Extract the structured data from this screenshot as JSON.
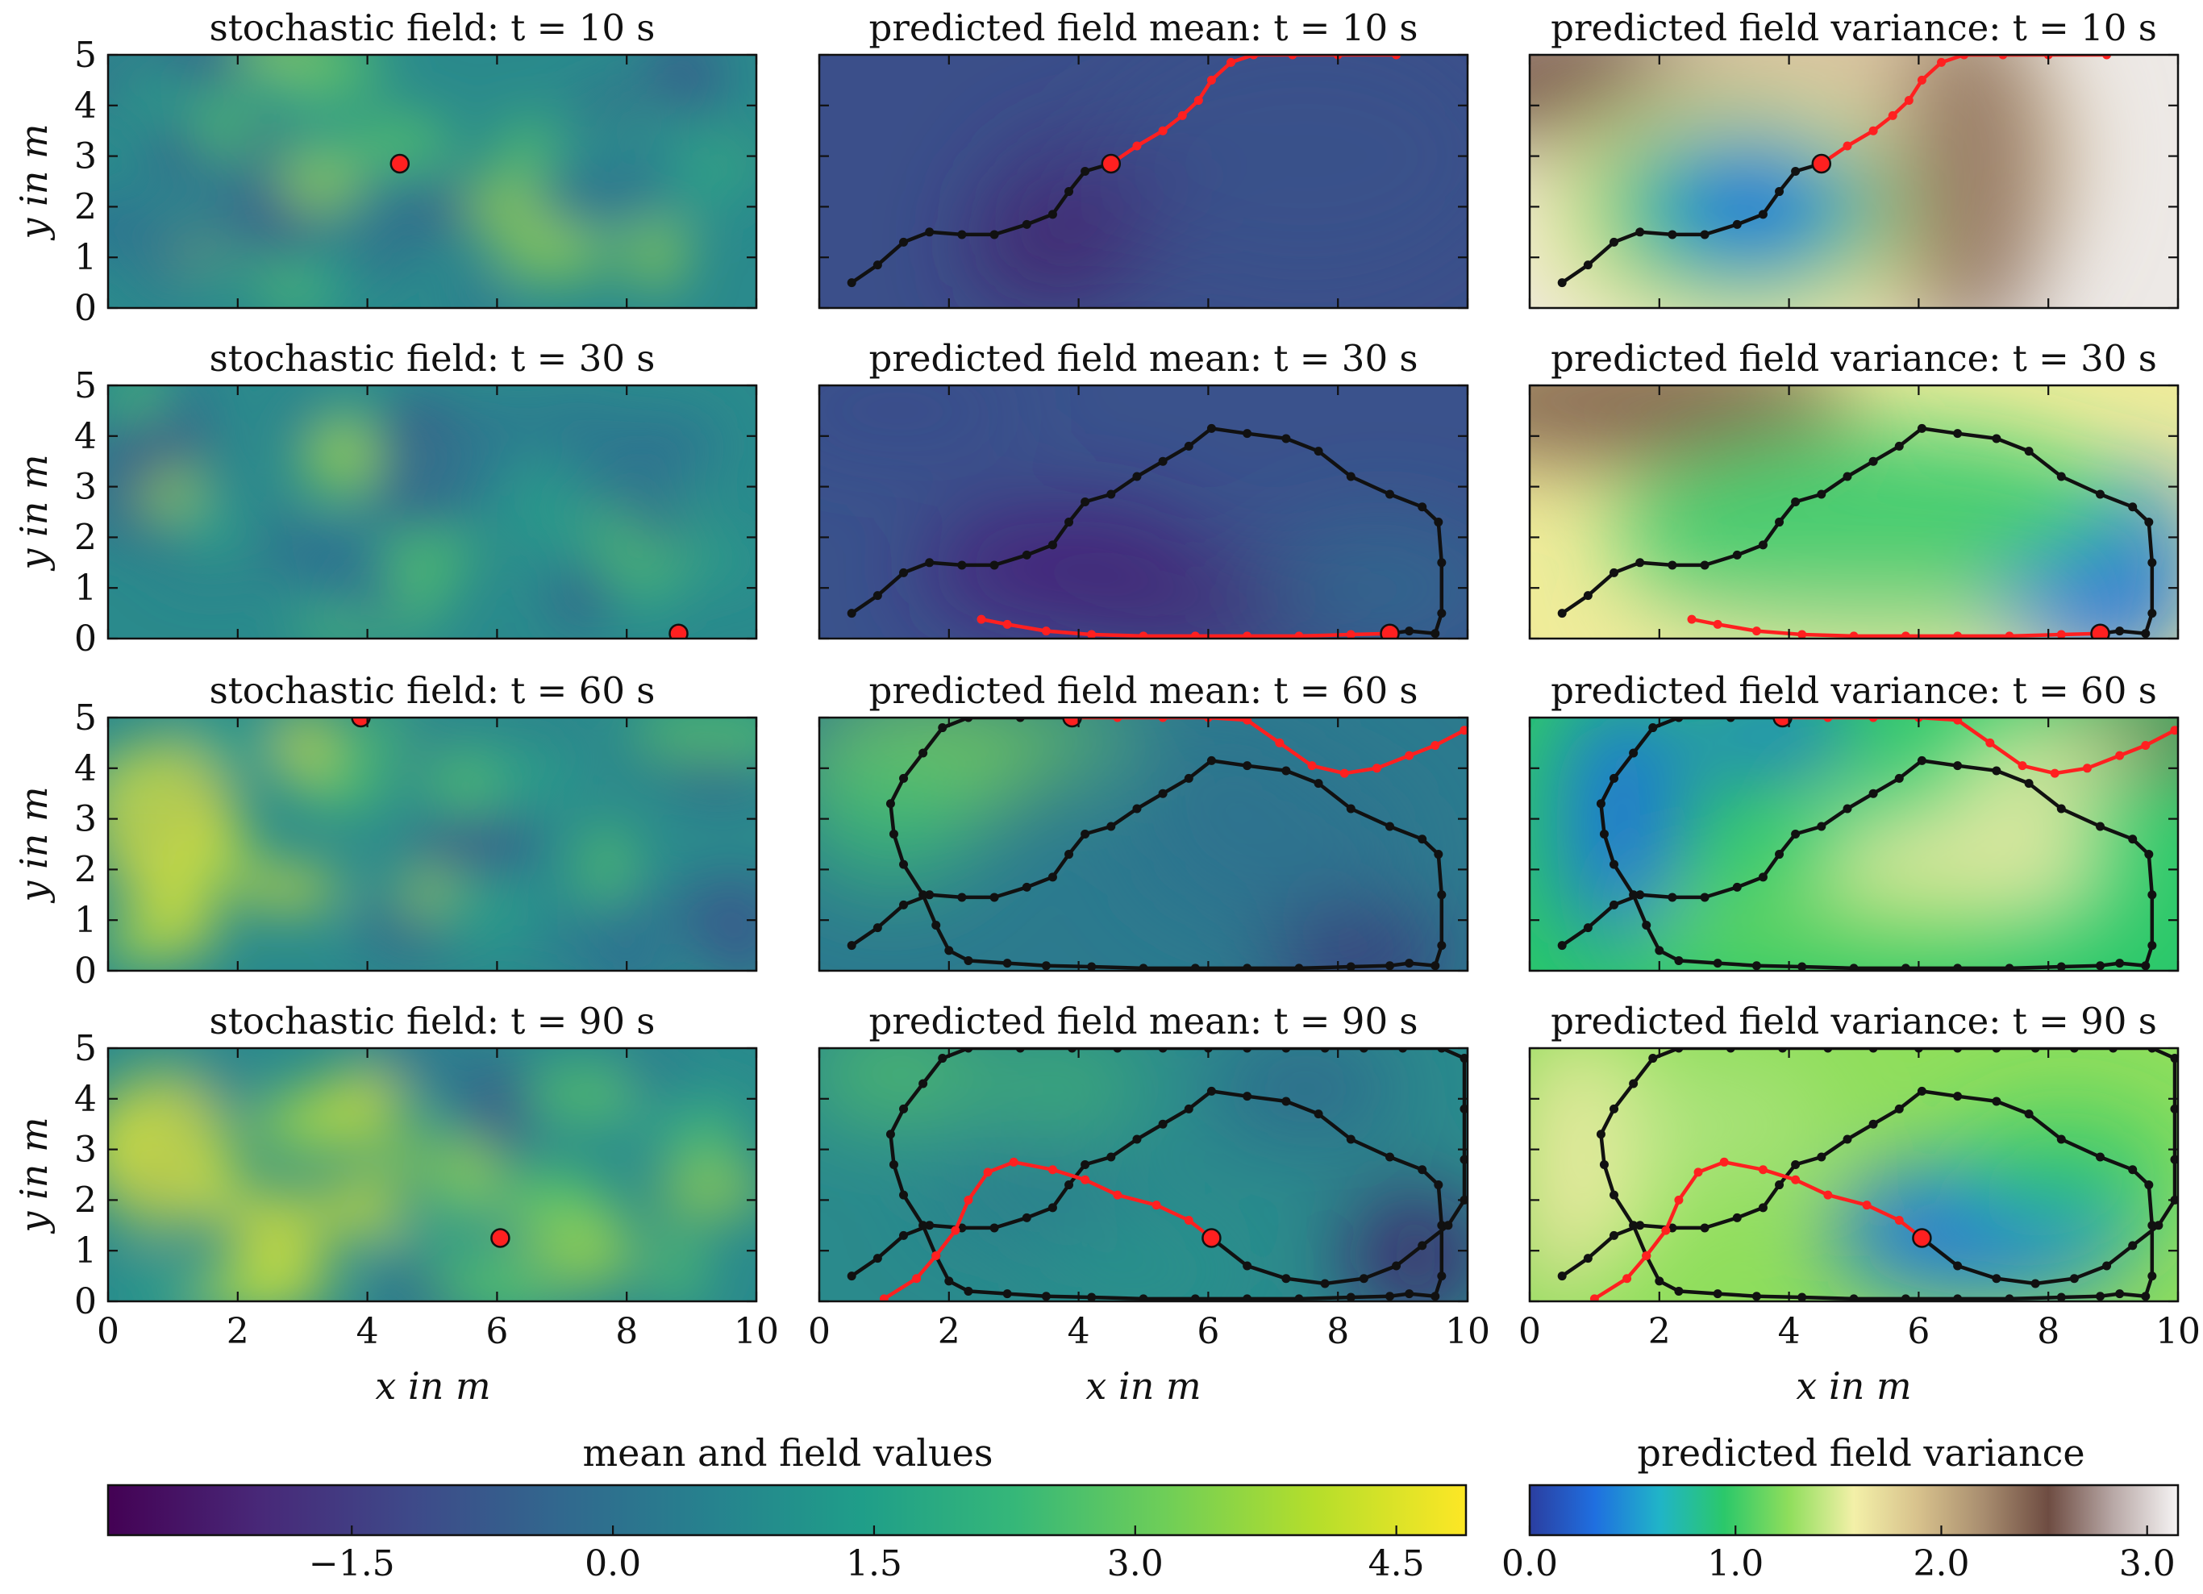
{
  "colors": {
    "trajectory": "#111111",
    "current_segment": "#ff2020",
    "current_position": "#ff2020",
    "frame": "#111111",
    "viridis": [
      "#440154",
      "#482878",
      "#3e4989",
      "#31688e",
      "#26828e",
      "#1f9e89",
      "#35b779",
      "#6ece58",
      "#b5de2b",
      "#fde725"
    ],
    "variance_map": [
      "#2b3ea0",
      "#1f6fe0",
      "#20b4c8",
      "#2bc86a",
      "#8fde5c",
      "#f3f0a8",
      "#d7c18c",
      "#a88d6f",
      "#6e4c42",
      "#b8a8a6",
      "#f6f4f4"
    ]
  },
  "figure": {
    "column_titles": [
      "stochastic field:",
      "predicted field mean:",
      "predicted field variance:"
    ],
    "time_symbol": "t",
    "time_unit": "s",
    "equals": "=",
    "times": [
      10,
      30,
      60,
      90
    ],
    "ylabel_var": "y",
    "xlabel_var": "x",
    "axis_unit_text": "in m"
  },
  "colorbars": {
    "mean": {
      "label": "mean and field values",
      "ticks": [
        "−1.5",
        "0.0",
        "1.5",
        "3.0",
        "4.5"
      ],
      "tick_values": [
        -1.5,
        0.0,
        1.5,
        3.0,
        4.5
      ],
      "range": [
        -2.9,
        4.9
      ]
    },
    "variance": {
      "label": "predicted field variance",
      "ticks": [
        "0.0",
        "1.0",
        "2.0",
        "3.0"
      ],
      "tick_values": [
        0.0,
        1.0,
        2.0,
        3.0
      ],
      "range": [
        0.0,
        3.15
      ]
    }
  },
  "chart_data": {
    "type": "contour_grid",
    "rows": 4,
    "columns": 3,
    "xlim": [
      0,
      10
    ],
    "ylim": [
      0,
      5
    ],
    "xticks": [
      "0",
      "2",
      "4",
      "6",
      "8",
      "10"
    ],
    "yticks": [
      "0",
      "1",
      "2",
      "3",
      "4",
      "5"
    ],
    "xlabel": "x in m",
    "ylabel": "y in m",
    "path_waypoints": [
      [
        0.5,
        0.5
      ],
      [
        0.9,
        0.85
      ],
      [
        1.3,
        1.3
      ],
      [
        1.7,
        1.5
      ],
      [
        2.2,
        1.45
      ],
      [
        2.7,
        1.45
      ],
      [
        3.2,
        1.65
      ],
      [
        3.6,
        1.85
      ],
      [
        3.85,
        2.3
      ],
      [
        4.1,
        2.7
      ],
      [
        4.5,
        2.85
      ],
      [
        4.9,
        3.2
      ],
      [
        5.3,
        3.5
      ],
      [
        5.6,
        3.8
      ],
      [
        5.85,
        4.1
      ],
      [
        6.05,
        4.5
      ],
      [
        6.35,
        4.85
      ],
      [
        6.7,
        5.0
      ],
      [
        7.3,
        5.0
      ],
      [
        8.0,
        5.0
      ],
      [
        8.9,
        5.0
      ]
    ],
    "row_paths": [
      {
        "time": 10,
        "black": [
          [
            0.5,
            0.5
          ],
          [
            0.9,
            0.85
          ],
          [
            1.3,
            1.3
          ],
          [
            1.7,
            1.5
          ],
          [
            2.2,
            1.45
          ],
          [
            2.7,
            1.45
          ],
          [
            3.2,
            1.65
          ],
          [
            3.6,
            1.85
          ],
          [
            3.85,
            2.3
          ],
          [
            4.1,
            2.7
          ],
          [
            4.5,
            2.85
          ]
        ],
        "red": [
          [
            4.5,
            2.85
          ],
          [
            4.9,
            3.2
          ],
          [
            5.3,
            3.5
          ],
          [
            5.6,
            3.8
          ],
          [
            5.85,
            4.1
          ],
          [
            6.05,
            4.5
          ],
          [
            6.35,
            4.85
          ],
          [
            6.7,
            5.0
          ],
          [
            7.3,
            5.0
          ],
          [
            8.0,
            5.0
          ],
          [
            8.9,
            5.0
          ]
        ],
        "current": [
          4.5,
          2.85
        ]
      },
      {
        "time": 30,
        "black": [
          [
            0.5,
            0.5
          ],
          [
            0.9,
            0.85
          ],
          [
            1.3,
            1.3
          ],
          [
            1.7,
            1.5
          ],
          [
            2.2,
            1.45
          ],
          [
            2.7,
            1.45
          ],
          [
            3.2,
            1.65
          ],
          [
            3.6,
            1.85
          ],
          [
            3.85,
            2.3
          ],
          [
            4.1,
            2.7
          ],
          [
            4.5,
            2.85
          ],
          [
            4.9,
            3.2
          ],
          [
            5.3,
            3.5
          ],
          [
            5.7,
            3.8
          ],
          [
            6.05,
            4.15
          ],
          [
            6.6,
            4.05
          ],
          [
            7.2,
            3.95
          ],
          [
            7.7,
            3.7
          ],
          [
            8.2,
            3.2
          ],
          [
            8.8,
            2.85
          ],
          [
            9.3,
            2.6
          ],
          [
            9.55,
            2.3
          ],
          [
            9.6,
            1.5
          ],
          [
            9.6,
            0.5
          ],
          [
            9.5,
            0.1
          ],
          [
            9.1,
            0.15
          ],
          [
            8.8,
            0.1
          ]
        ],
        "red": [
          [
            8.8,
            0.1
          ],
          [
            8.2,
            0.08
          ],
          [
            7.4,
            0.05
          ],
          [
            6.6,
            0.05
          ],
          [
            5.8,
            0.05
          ],
          [
            5.0,
            0.05
          ],
          [
            4.2,
            0.08
          ],
          [
            3.5,
            0.15
          ],
          [
            2.9,
            0.28
          ],
          [
            2.5,
            0.38
          ]
        ],
        "current": [
          8.8,
          0.1
        ]
      },
      {
        "time": 60,
        "black_paths": [
          [
            [
              0.5,
              0.5
            ],
            [
              0.9,
              0.85
            ],
            [
              1.3,
              1.3
            ],
            [
              1.7,
              1.5
            ],
            [
              2.2,
              1.45
            ],
            [
              2.7,
              1.45
            ],
            [
              3.2,
              1.65
            ],
            [
              3.6,
              1.85
            ],
            [
              3.85,
              2.3
            ],
            [
              4.1,
              2.7
            ],
            [
              4.5,
              2.85
            ],
            [
              4.9,
              3.2
            ],
            [
              5.3,
              3.5
            ],
            [
              5.7,
              3.8
            ],
            [
              6.05,
              4.15
            ],
            [
              6.6,
              4.05
            ],
            [
              7.2,
              3.95
            ],
            [
              7.7,
              3.7
            ],
            [
              8.2,
              3.2
            ],
            [
              8.8,
              2.85
            ],
            [
              9.3,
              2.6
            ],
            [
              9.55,
              2.3
            ],
            [
              9.6,
              1.5
            ],
            [
              9.6,
              0.5
            ],
            [
              9.5,
              0.1
            ],
            [
              9.1,
              0.15
            ],
            [
              8.8,
              0.1
            ],
            [
              8.2,
              0.08
            ],
            [
              7.4,
              0.05
            ],
            [
              6.6,
              0.05
            ],
            [
              5.8,
              0.05
            ],
            [
              5.0,
              0.05
            ],
            [
              4.2,
              0.08
            ],
            [
              3.5,
              0.1
            ],
            [
              2.9,
              0.15
            ],
            [
              2.3,
              0.2
            ],
            [
              2.0,
              0.4
            ],
            [
              1.8,
              0.9
            ],
            [
              1.6,
              1.5
            ],
            [
              1.3,
              2.1
            ],
            [
              1.15,
              2.7
            ],
            [
              1.1,
              3.3
            ],
            [
              1.3,
              3.8
            ],
            [
              1.6,
              4.3
            ],
            [
              1.9,
              4.8
            ],
            [
              2.3,
              5.0
            ],
            [
              3.1,
              5.0
            ],
            [
              3.9,
              5.0
            ]
          ]
        ],
        "red": [
          [
            3.9,
            5.0
          ],
          [
            4.6,
            5.0
          ],
          [
            5.3,
            5.0
          ],
          [
            6.0,
            5.0
          ],
          [
            6.6,
            4.95
          ],
          [
            7.1,
            4.5
          ],
          [
            7.6,
            4.05
          ],
          [
            8.1,
            3.9
          ],
          [
            8.6,
            4.0
          ],
          [
            9.1,
            4.25
          ],
          [
            9.5,
            4.45
          ],
          [
            9.95,
            4.75
          ]
        ],
        "current": [
          3.9,
          5.0
        ]
      },
      {
        "time": 90,
        "black_paths": [
          [
            [
              0.5,
              0.5
            ],
            [
              0.9,
              0.85
            ],
            [
              1.3,
              1.3
            ],
            [
              1.7,
              1.5
            ],
            [
              2.2,
              1.45
            ],
            [
              2.7,
              1.45
            ],
            [
              3.2,
              1.65
            ],
            [
              3.6,
              1.85
            ],
            [
              3.85,
              2.3
            ],
            [
              4.1,
              2.7
            ],
            [
              4.5,
              2.85
            ],
            [
              4.9,
              3.2
            ],
            [
              5.3,
              3.5
            ],
            [
              5.7,
              3.8
            ],
            [
              6.05,
              4.15
            ],
            [
              6.6,
              4.05
            ],
            [
              7.2,
              3.95
            ],
            [
              7.7,
              3.7
            ],
            [
              8.2,
              3.2
            ],
            [
              8.8,
              2.85
            ],
            [
              9.3,
              2.6
            ],
            [
              9.55,
              2.3
            ],
            [
              9.6,
              1.5
            ],
            [
              9.6,
              0.5
            ],
            [
              9.5,
              0.1
            ],
            [
              9.1,
              0.15
            ],
            [
              8.8,
              0.1
            ],
            [
              8.2,
              0.08
            ],
            [
              7.4,
              0.05
            ],
            [
              6.6,
              0.05
            ],
            [
              5.8,
              0.05
            ],
            [
              5.0,
              0.05
            ],
            [
              4.2,
              0.08
            ],
            [
              3.5,
              0.1
            ],
            [
              2.9,
              0.15
            ],
            [
              2.3,
              0.2
            ],
            [
              2.0,
              0.4
            ],
            [
              1.8,
              0.9
            ],
            [
              1.6,
              1.5
            ],
            [
              1.3,
              2.1
            ],
            [
              1.15,
              2.7
            ],
            [
              1.1,
              3.3
            ],
            [
              1.3,
              3.8
            ],
            [
              1.6,
              4.3
            ],
            [
              1.9,
              4.8
            ],
            [
              2.3,
              5.0
            ],
            [
              3.1,
              5.0
            ],
            [
              3.9,
              5.0
            ],
            [
              4.6,
              5.0
            ],
            [
              5.3,
              5.0
            ],
            [
              6.0,
              5.0
            ],
            [
              6.6,
              5.0
            ],
            [
              7.2,
              5.0
            ],
            [
              7.8,
              5.0
            ],
            [
              8.4,
              5.0
            ],
            [
              9.0,
              5.0
            ],
            [
              9.6,
              5.0
            ],
            [
              9.95,
              4.8
            ],
            [
              9.95,
              3.8
            ],
            [
              9.95,
              2.8
            ],
            [
              9.95,
              2.0
            ],
            [
              9.7,
              1.5
            ],
            [
              9.3,
              1.1
            ],
            [
              8.9,
              0.7
            ],
            [
              8.4,
              0.45
            ],
            [
              7.8,
              0.35
            ],
            [
              7.2,
              0.45
            ],
            [
              6.6,
              0.7
            ],
            [
              6.05,
              1.25
            ]
          ]
        ],
        "red": [
          [
            6.05,
            1.25
          ],
          [
            5.7,
            1.6
          ],
          [
            5.2,
            1.9
          ],
          [
            4.6,
            2.1
          ],
          [
            4.1,
            2.4
          ],
          [
            3.6,
            2.6
          ],
          [
            3.0,
            2.75
          ],
          [
            2.6,
            2.55
          ],
          [
            2.3,
            2.0
          ],
          [
            2.1,
            1.4
          ],
          [
            1.8,
            0.9
          ],
          [
            1.5,
            0.45
          ],
          [
            1.0,
            0.05
          ]
        ],
        "current": [
          6.05,
          1.25
        ]
      }
    ]
  }
}
